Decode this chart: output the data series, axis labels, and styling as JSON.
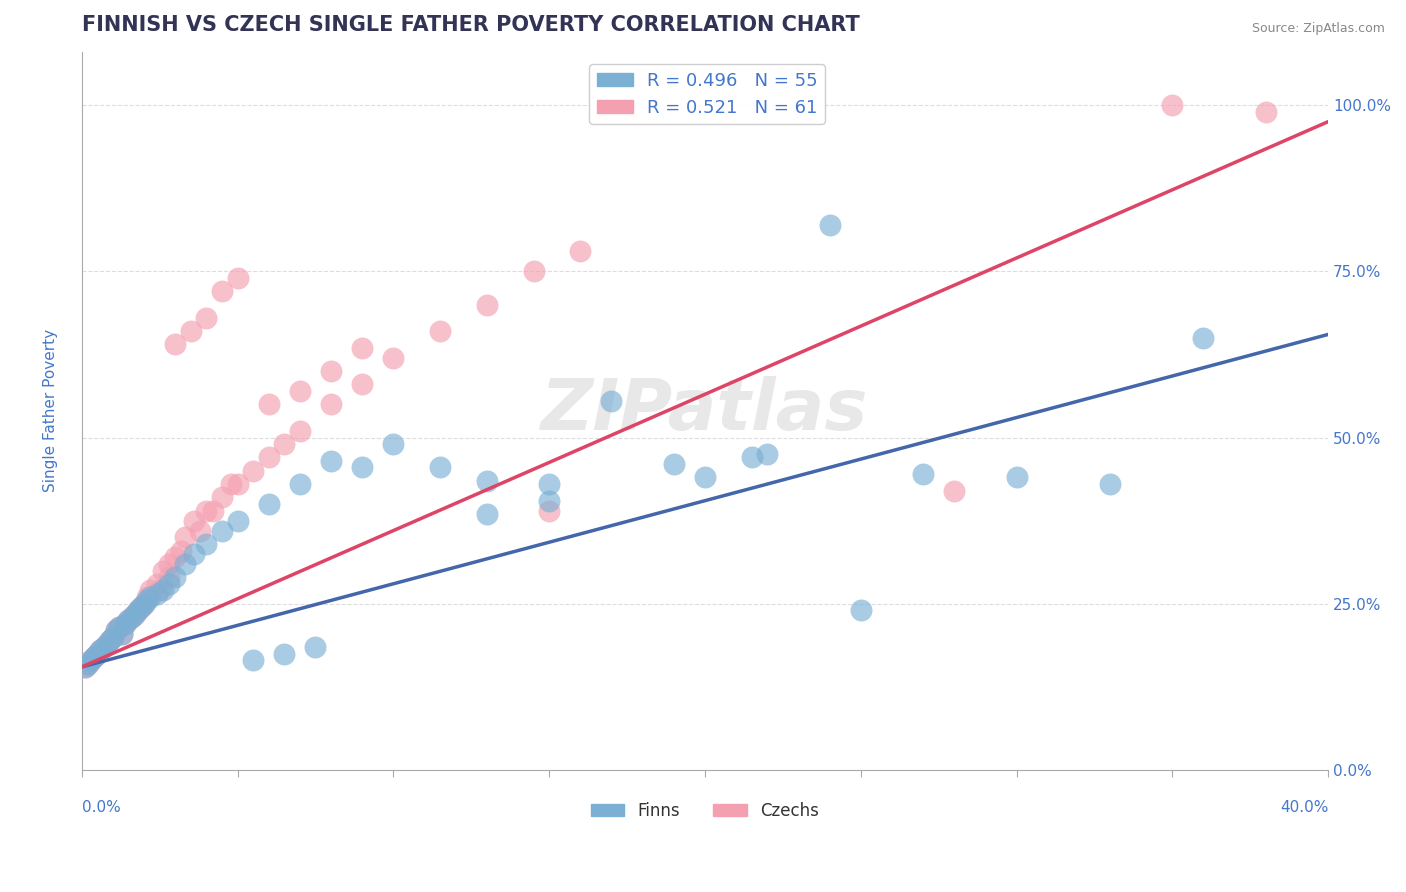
{
  "title": "FINNISH VS CZECH SINGLE FATHER POVERTY CORRELATION CHART",
  "source": "Source: ZipAtlas.com",
  "ylabel": "Single Father Poverty",
  "xlim": [
    0.0,
    0.4
  ],
  "ylim": [
    0.1,
    1.08
  ],
  "yticks": [
    0.0,
    0.25,
    0.5,
    0.75,
    1.0
  ],
  "ytick_labels": [
    "0.0%",
    "25.0%",
    "50.0%",
    "75.0%",
    "100.0%"
  ],
  "finn_R": 0.496,
  "finn_N": 55,
  "czech_R": 0.521,
  "czech_N": 61,
  "finn_color": "#7BAFD4",
  "czech_color": "#F4A0B0",
  "finn_line_color": "#4466AA",
  "czech_line_color": "#DD4466",
  "legend_finn": "Finns",
  "legend_czech": "Czechs",
  "title_color": "#333355",
  "axis_label_color": "#4477CC",
  "title_fontsize": 15,
  "label_fontsize": 11,
  "finn_line_x0": 0.0,
  "finn_line_y0": 0.155,
  "finn_line_x1": 0.4,
  "finn_line_y1": 0.655,
  "czech_line_x0": 0.0,
  "czech_line_y0": 0.155,
  "czech_line_x1": 0.4,
  "czech_line_y1": 0.975,
  "finn_x": [
    0.001,
    0.002,
    0.003,
    0.004,
    0.005,
    0.006,
    0.007,
    0.008,
    0.009,
    0.01,
    0.011,
    0.012,
    0.013,
    0.014,
    0.015,
    0.016,
    0.017,
    0.018,
    0.019,
    0.02,
    0.021,
    0.022,
    0.024,
    0.026,
    0.028,
    0.03,
    0.033,
    0.036,
    0.04,
    0.045,
    0.05,
    0.06,
    0.07,
    0.08,
    0.09,
    0.1,
    0.115,
    0.13,
    0.15,
    0.17,
    0.19,
    0.215,
    0.24,
    0.27,
    0.3,
    0.33,
    0.36,
    0.13,
    0.15,
    0.2,
    0.22,
    0.25,
    0.055,
    0.065,
    0.075
  ],
  "finn_y": [
    0.155,
    0.16,
    0.165,
    0.17,
    0.175,
    0.18,
    0.185,
    0.19,
    0.195,
    0.2,
    0.21,
    0.215,
    0.205,
    0.22,
    0.225,
    0.23,
    0.235,
    0.24,
    0.245,
    0.25,
    0.255,
    0.26,
    0.265,
    0.27,
    0.28,
    0.29,
    0.31,
    0.325,
    0.34,
    0.36,
    0.375,
    0.4,
    0.43,
    0.465,
    0.455,
    0.49,
    0.455,
    0.435,
    0.43,
    0.555,
    0.46,
    0.47,
    0.82,
    0.445,
    0.44,
    0.43,
    0.65,
    0.385,
    0.405,
    0.44,
    0.475,
    0.24,
    0.165,
    0.175,
    0.185
  ],
  "czech_x": [
    0.001,
    0.002,
    0.003,
    0.004,
    0.005,
    0.006,
    0.007,
    0.008,
    0.009,
    0.01,
    0.011,
    0.012,
    0.013,
    0.014,
    0.015,
    0.016,
    0.017,
    0.018,
    0.019,
    0.02,
    0.021,
    0.022,
    0.024,
    0.026,
    0.028,
    0.03,
    0.033,
    0.036,
    0.04,
    0.045,
    0.05,
    0.055,
    0.06,
    0.065,
    0.07,
    0.08,
    0.09,
    0.1,
    0.115,
    0.13,
    0.03,
    0.035,
    0.04,
    0.045,
    0.05,
    0.06,
    0.07,
    0.08,
    0.09,
    0.15,
    0.28,
    0.35,
    0.38,
    0.145,
    0.16,
    0.025,
    0.028,
    0.032,
    0.038,
    0.042,
    0.048
  ],
  "czech_y": [
    0.155,
    0.16,
    0.165,
    0.17,
    0.175,
    0.18,
    0.185,
    0.19,
    0.195,
    0.2,
    0.21,
    0.215,
    0.205,
    0.22,
    0.225,
    0.23,
    0.235,
    0.24,
    0.245,
    0.25,
    0.26,
    0.27,
    0.28,
    0.3,
    0.31,
    0.32,
    0.35,
    0.375,
    0.39,
    0.41,
    0.43,
    0.45,
    0.47,
    0.49,
    0.51,
    0.55,
    0.58,
    0.62,
    0.66,
    0.7,
    0.64,
    0.66,
    0.68,
    0.72,
    0.74,
    0.55,
    0.57,
    0.6,
    0.635,
    0.39,
    0.42,
    1.0,
    0.99,
    0.75,
    0.78,
    0.27,
    0.29,
    0.33,
    0.36,
    0.39,
    0.43
  ]
}
